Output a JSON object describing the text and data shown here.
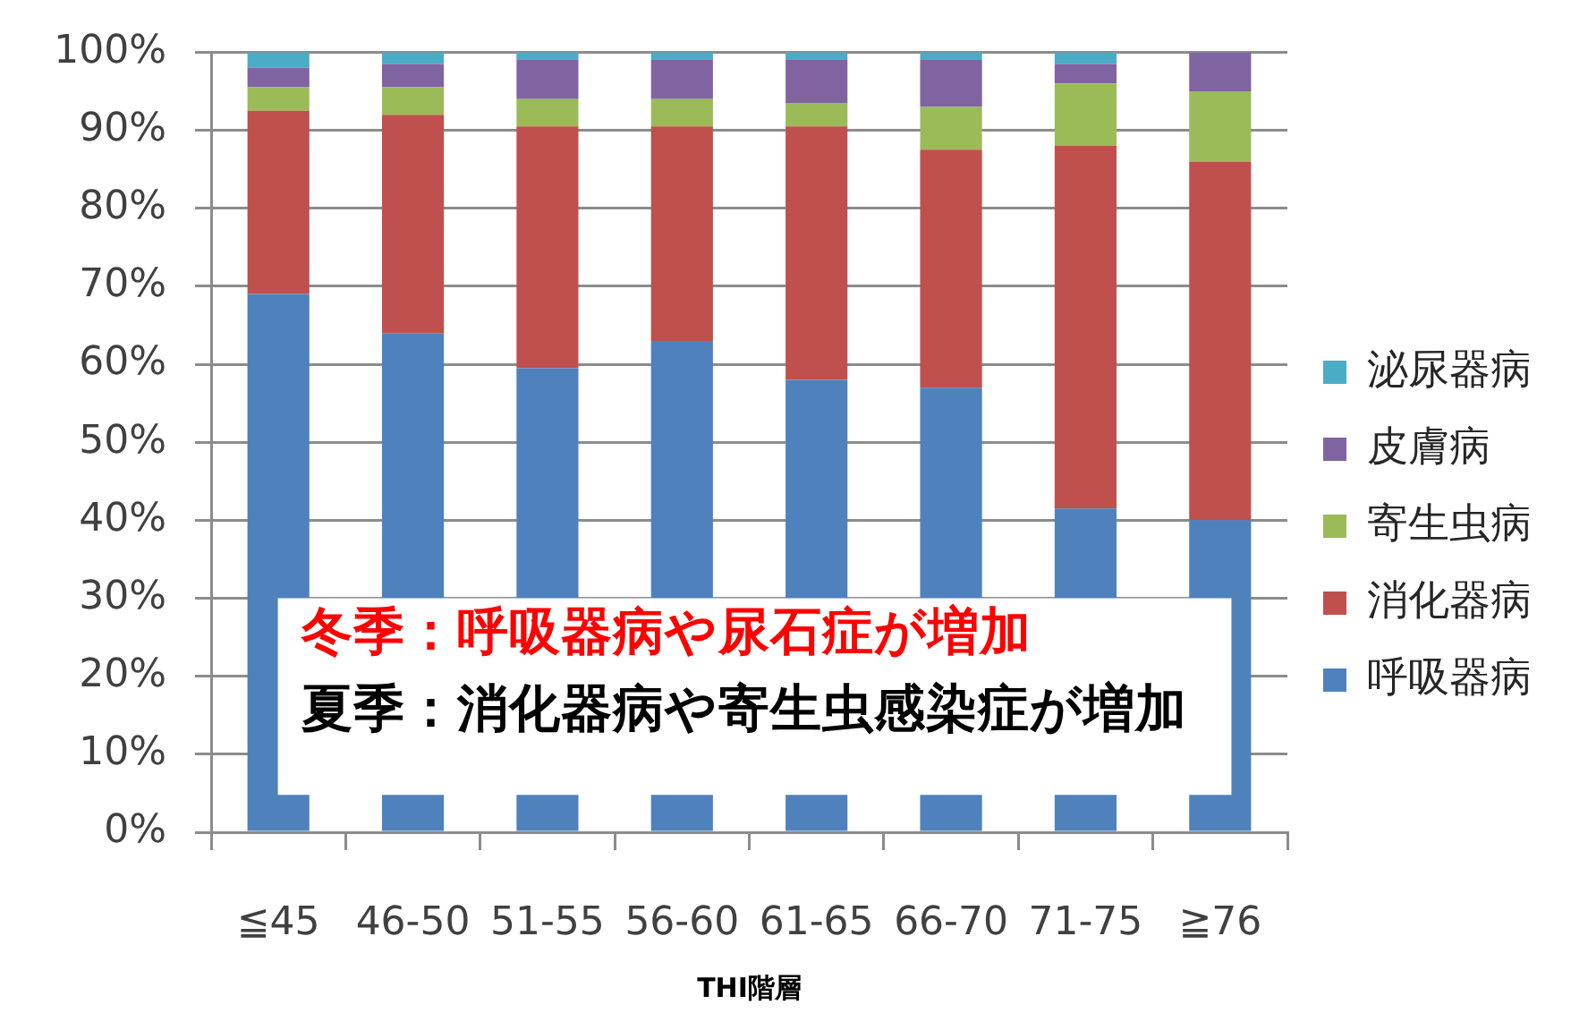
{
  "chart_data": {
    "type": "bar",
    "stacked": true,
    "xlabel": "THI階層",
    "categories": [
      "≦45",
      "46-50",
      "51-55",
      "56-60",
      "61-65",
      "66-70",
      "71-75",
      "≧76"
    ],
    "series": [
      {
        "name": "呼吸器病",
        "color": "#4f81bd",
        "values": [
          69,
          64,
          59.5,
          63,
          58,
          57,
          41.5,
          40
        ]
      },
      {
        "name": "消化器病",
        "color": "#c0504d",
        "values": [
          23.5,
          28,
          31,
          27.5,
          32.5,
          30.5,
          46.5,
          46
        ]
      },
      {
        "name": "寄生虫病",
        "color": "#9bbb59",
        "values": [
          3,
          3.5,
          3.5,
          3.5,
          3,
          5.5,
          8,
          9
        ]
      },
      {
        "name": "皮膚病",
        "color": "#8064a2",
        "values": [
          2.5,
          3,
          5,
          5,
          5.5,
          6,
          2.5,
          5
        ]
      },
      {
        "name": "泌尿器病",
        "color": "#4bacc6",
        "values": [
          2,
          1.5,
          1,
          1,
          1,
          1,
          1.5,
          0
        ]
      }
    ],
    "ylim": [
      0,
      100
    ],
    "yticks": [
      {
        "value": 0,
        "label": "0%"
      },
      {
        "value": 10,
        "label": "10%"
      },
      {
        "value": 20,
        "label": "20%"
      },
      {
        "value": 30,
        "label": "30%"
      },
      {
        "value": 40,
        "label": "40%"
      },
      {
        "value": 50,
        "label": "50%"
      },
      {
        "value": 60,
        "label": "60%"
      },
      {
        "value": 70,
        "label": "70%"
      },
      {
        "value": 80,
        "label": "80%"
      },
      {
        "value": 90,
        "label": "90%"
      },
      {
        "value": 100,
        "label": "100%"
      }
    ],
    "grid": "y",
    "legend": "right",
    "annotations": [
      "冬季：呼吸器病や尿石症が増加",
      "夏季：消化器病や寄生虫感染症が増加"
    ]
  }
}
